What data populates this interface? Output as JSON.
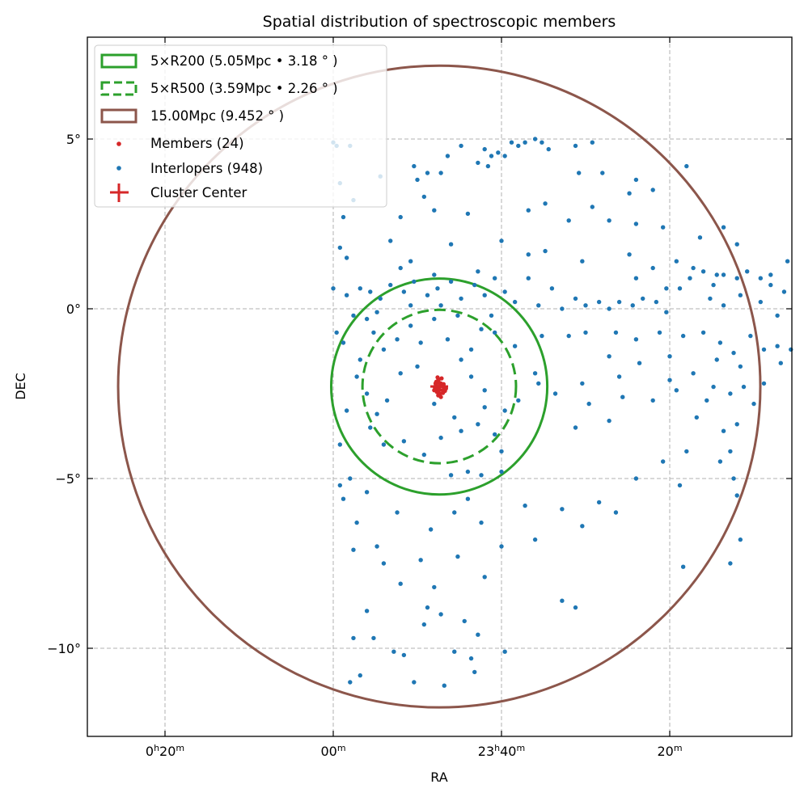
{
  "chart_data": {
    "type": "scatter",
    "title": "Spatial distribution of spectroscopic members",
    "xlabel": "RA",
    "ylabel": "DEC",
    "xlim_ra_deg": [
      7.31,
      346.37
    ],
    "x_inverted": true,
    "ylim": [
      -12.6,
      8.0
    ],
    "grid": true,
    "legend_placement": "top-left",
    "x_ticks": [
      {
        "ra_deg": 5,
        "parts": [
          {
            "t": "0"
          },
          {
            "t": "h",
            "sup": true
          },
          {
            "t": "20"
          },
          {
            "t": "m",
            "sup": true
          }
        ]
      },
      {
        "ra_deg": 0,
        "parts": [
          {
            "t": "00"
          },
          {
            "t": "m",
            "sup": true
          }
        ]
      },
      {
        "ra_deg": 355,
        "parts": [
          {
            "t": "23"
          },
          {
            "t": "h",
            "sup": true
          },
          {
            "t": "40"
          },
          {
            "t": "m",
            "sup": true
          }
        ]
      },
      {
        "ra_deg": 350,
        "parts": [
          {
            "t": "20"
          },
          {
            "t": "m",
            "sup": true
          }
        ]
      }
    ],
    "y_ticks": [
      {
        "value": 5,
        "label": "5°"
      },
      {
        "value": 0,
        "label": "0°"
      },
      {
        "value": -5,
        "label": "−5°"
      },
      {
        "value": -10,
        "label": "−10°"
      }
    ],
    "cluster_center": {
      "ra": 356.85,
      "dec": -2.29,
      "color": "#d62728"
    },
    "circles": [
      {
        "name": "r200",
        "radius_deg": 3.18,
        "style": "solid",
        "color": "#2ca02c",
        "label": "5×R200 (5.05Mpc • 3.18 ° )"
      },
      {
        "name": "r500",
        "radius_deg": 2.26,
        "style": "dashed",
        "color": "#2ca02c",
        "label": "5×R500 (3.59Mpc • 2.26 ° )"
      },
      {
        "name": "15mpc",
        "radius_deg": 9.452,
        "style": "solid",
        "color": "#8c564b",
        "label": "15.00Mpc (9.452 ° )"
      }
    ],
    "legend": {
      "members_label": "Members (24)",
      "interlopers_label": "Interlopers (948)",
      "center_label": "Cluster Center"
    },
    "members": {
      "color": "#d62728",
      "points": [
        [
          356.85,
          -2.29
        ],
        [
          356.8,
          -2.2
        ],
        [
          356.9,
          -2.35
        ],
        [
          356.75,
          -2.4
        ],
        [
          356.95,
          -2.25
        ],
        [
          356.7,
          -2.3
        ],
        [
          356.88,
          -2.1
        ],
        [
          356.78,
          -2.05
        ],
        [
          356.92,
          -2.45
        ],
        [
          356.82,
          -2.5
        ],
        [
          356.65,
          -2.35
        ],
        [
          356.98,
          -2.32
        ],
        [
          356.86,
          -2.18
        ],
        [
          356.72,
          -2.22
        ],
        [
          356.94,
          -2.15
        ],
        [
          356.84,
          -2.38
        ],
        [
          356.76,
          -2.28
        ],
        [
          357.0,
          -2.4
        ],
        [
          356.68,
          -2.42
        ],
        [
          356.9,
          -2.02
        ],
        [
          356.8,
          -2.6
        ],
        [
          356.96,
          -2.2
        ],
        [
          356.74,
          -2.48
        ],
        [
          356.88,
          -2.55
        ]
      ]
    },
    "interlopers": {
      "color": "#1f77b4",
      "points": [
        [
          356.2,
          4.8
        ],
        [
          355.5,
          4.7
        ],
        [
          355.3,
          4.5
        ],
        [
          355.1,
          4.6
        ],
        [
          354.9,
          4.5
        ],
        [
          354.7,
          4.9
        ],
        [
          354.5,
          4.8
        ],
        [
          354.3,
          4.9
        ],
        [
          354.0,
          5.0
        ],
        [
          353.8,
          4.9
        ],
        [
          353.6,
          4.7
        ],
        [
          352.8,
          4.8
        ],
        [
          352.3,
          4.9
        ],
        [
          356.6,
          4.5
        ],
        [
          357.6,
          4.2
        ],
        [
          357.5,
          3.8
        ],
        [
          357.2,
          4.0
        ],
        [
          356.8,
          4.0
        ],
        [
          355.7,
          4.3
        ],
        [
          355.4,
          4.2
        ],
        [
          352.7,
          4.0
        ],
        [
          352.0,
          4.0
        ],
        [
          351.0,
          3.8
        ],
        [
          349.5,
          4.2
        ],
        [
          350.5,
          3.5
        ],
        [
          351.2,
          3.4
        ],
        [
          359.4,
          3.2
        ],
        [
          358.0,
          2.7
        ],
        [
          357.3,
          3.3
        ],
        [
          357.0,
          2.9
        ],
        [
          356.0,
          2.8
        ],
        [
          354.2,
          2.9
        ],
        [
          353.7,
          3.1
        ],
        [
          353.0,
          2.6
        ],
        [
          352.3,
          3.0
        ],
        [
          351.8,
          2.6
        ],
        [
          351.0,
          2.5
        ],
        [
          350.2,
          2.4
        ],
        [
          349.1,
          2.1
        ],
        [
          348.4,
          2.4
        ],
        [
          348.0,
          1.9
        ],
        [
          359.7,
          2.7
        ],
        [
          358.3,
          2.0
        ],
        [
          357.7,
          1.4
        ],
        [
          356.5,
          1.9
        ],
        [
          355.0,
          2.0
        ],
        [
          354.2,
          1.6
        ],
        [
          353.7,
          1.7
        ],
        [
          352.6,
          1.4
        ],
        [
          351.2,
          1.6
        ],
        [
          350.5,
          1.2
        ],
        [
          349.8,
          1.4
        ],
        [
          349.3,
          1.2
        ],
        [
          348.6,
          1.0
        ],
        [
          347.0,
          1.0
        ],
        [
          346.5,
          1.4
        ],
        [
          359.8,
          1.8
        ],
        [
          359.6,
          1.5
        ],
        [
          360.0,
          0.6
        ],
        [
          359.6,
          0.4
        ],
        [
          359.2,
          0.6
        ],
        [
          358.9,
          0.5
        ],
        [
          358.6,
          0.3
        ],
        [
          358.3,
          0.7
        ],
        [
          357.9,
          0.5
        ],
        [
          357.6,
          0.8
        ],
        [
          357.2,
          0.4
        ],
        [
          356.9,
          0.6
        ],
        [
          356.5,
          0.8
        ],
        [
          356.2,
          0.3
        ],
        [
          355.8,
          0.7
        ],
        [
          355.5,
          0.4
        ],
        [
          355.2,
          0.9
        ],
        [
          354.9,
          0.5
        ],
        [
          354.6,
          0.2
        ],
        [
          354.2,
          0.9
        ],
        [
          353.9,
          0.1
        ],
        [
          353.5,
          0.6
        ],
        [
          353.2,
          0.0
        ],
        [
          352.8,
          0.3
        ],
        [
          352.5,
          0.1
        ],
        [
          352.1,
          0.2
        ],
        [
          351.8,
          0.0
        ],
        [
          351.5,
          0.2
        ],
        [
          351.1,
          0.1
        ],
        [
          350.8,
          0.3
        ],
        [
          350.4,
          0.2
        ],
        [
          350.1,
          -0.1
        ],
        [
          349.7,
          0.6
        ],
        [
          349.4,
          0.9
        ],
        [
          349.0,
          1.1
        ],
        [
          348.7,
          0.7
        ],
        [
          348.4,
          1.0
        ],
        [
          348.0,
          0.9
        ],
        [
          347.7,
          1.1
        ],
        [
          347.3,
          0.9
        ],
        [
          347.0,
          0.7
        ],
        [
          346.6,
          0.5
        ],
        [
          348.8,
          0.3
        ],
        [
          348.4,
          0.1
        ],
        [
          347.9,
          0.4
        ],
        [
          347.3,
          0.2
        ],
        [
          346.8,
          -0.2
        ],
        [
          351.0,
          0.9
        ],
        [
          350.1,
          0.6
        ],
        [
          355.7,
          1.1
        ],
        [
          357.0,
          1.0
        ],
        [
          358.0,
          1.2
        ],
        [
          352.5,
          -0.7
        ],
        [
          351.6,
          -0.7
        ],
        [
          351.0,
          -0.9
        ],
        [
          350.3,
          -0.7
        ],
        [
          349.6,
          -0.8
        ],
        [
          349.0,
          -0.7
        ],
        [
          348.5,
          -1.0
        ],
        [
          348.1,
          -1.3
        ],
        [
          347.6,
          -0.8
        ],
        [
          347.2,
          -1.2
        ],
        [
          346.8,
          -1.1
        ],
        [
          346.4,
          -1.2
        ],
        [
          346.7,
          -1.6
        ],
        [
          347.9,
          -1.7
        ],
        [
          348.6,
          -1.5
        ],
        [
          349.3,
          -1.9
        ],
        [
          350.0,
          -1.4
        ],
        [
          350.9,
          -1.6
        ],
        [
          351.8,
          -1.4
        ],
        [
          353.0,
          -0.8
        ],
        [
          353.8,
          -0.8
        ],
        [
          354.6,
          -1.1
        ],
        [
          355.2,
          -0.7
        ],
        [
          354.0,
          -1.9
        ],
        [
          352.6,
          -2.2
        ],
        [
          351.5,
          -2.0
        ],
        [
          350.0,
          -2.1
        ],
        [
          348.7,
          -2.3
        ],
        [
          348.2,
          -2.5
        ],
        [
          347.8,
          -2.3
        ],
        [
          347.5,
          -2.8
        ],
        [
          347.2,
          -2.2
        ],
        [
          348.9,
          -2.7
        ],
        [
          349.8,
          -2.4
        ],
        [
          350.5,
          -2.7
        ],
        [
          351.4,
          -2.6
        ],
        [
          352.4,
          -2.8
        ],
        [
          353.4,
          -2.5
        ],
        [
          353.9,
          -2.2
        ],
        [
          354.5,
          -2.7
        ],
        [
          348.0,
          -3.4
        ],
        [
          348.4,
          -3.6
        ],
        [
          349.2,
          -3.2
        ],
        [
          352.8,
          -3.5
        ],
        [
          351.8,
          -3.3
        ],
        [
          354.9,
          -3.0
        ],
        [
          355.5,
          -2.4
        ],
        [
          348.2,
          -4.2
        ],
        [
          348.5,
          -4.5
        ],
        [
          348.1,
          -5.0
        ],
        [
          348.0,
          -5.5
        ],
        [
          347.9,
          -6.8
        ],
        [
          349.7,
          -5.2
        ],
        [
          351.0,
          -5.0
        ],
        [
          349.5,
          -4.2
        ],
        [
          350.2,
          -4.5
        ],
        [
          352.1,
          -5.7
        ],
        [
          351.6,
          -6.0
        ],
        [
          352.6,
          -6.4
        ],
        [
          353.2,
          -5.9
        ],
        [
          354.3,
          -5.8
        ],
        [
          354.0,
          -6.8
        ],
        [
          355.0,
          -7.0
        ],
        [
          355.5,
          -7.9
        ],
        [
          349.6,
          -7.6
        ],
        [
          348.2,
          -7.5
        ],
        [
          353.2,
          -8.6
        ],
        [
          352.8,
          -8.8
        ],
        [
          356.1,
          -9.2
        ],
        [
          355.7,
          -9.6
        ],
        [
          356.4,
          -10.1
        ],
        [
          355.9,
          -10.3
        ],
        [
          354.9,
          -10.1
        ],
        [
          356.8,
          -9.0
        ],
        [
          357.2,
          -8.8
        ],
        [
          358.2,
          -10.1
        ],
        [
          358.8,
          -9.7
        ],
        [
          359.0,
          -8.9
        ],
        [
          359.4,
          -9.7
        ],
        [
          359.5,
          -11.0
        ],
        [
          359.2,
          -10.8
        ],
        [
          357.9,
          -10.2
        ],
        [
          357.6,
          -11.0
        ],
        [
          356.7,
          -11.1
        ],
        [
          355.8,
          -10.7
        ],
        [
          357.3,
          -9.3
        ],
        [
          358.5,
          -7.5
        ],
        [
          357.4,
          -7.4
        ],
        [
          356.3,
          -7.3
        ],
        [
          355.6,
          -6.3
        ],
        [
          356.4,
          -6.0
        ],
        [
          359.4,
          -7.1
        ],
        [
          358.7,
          -7.0
        ],
        [
          358.0,
          -8.1
        ],
        [
          357.0,
          -8.2
        ],
        [
          357.1,
          -6.5
        ],
        [
          356.0,
          -5.6
        ],
        [
          358.1,
          -6.0
        ],
        [
          359.3,
          -6.3
        ],
        [
          359.8,
          -5.2
        ],
        [
          359.7,
          -5.6
        ],
        [
          359.0,
          -5.4
        ],
        [
          356.5,
          -4.9
        ],
        [
          356.0,
          -4.8
        ],
        [
          355.0,
          -4.8
        ],
        [
          355.6,
          -4.9
        ],
        [
          359.9,
          -0.7
        ],
        [
          359.7,
          -1.0
        ],
        [
          359.4,
          -0.2
        ],
        [
          359.0,
          -0.3
        ],
        [
          358.8,
          -0.7
        ],
        [
          358.5,
          -1.2
        ],
        [
          358.1,
          -0.9
        ],
        [
          357.7,
          -0.5
        ],
        [
          357.4,
          -1.0
        ],
        [
          357.0,
          -0.3
        ],
        [
          356.6,
          -0.9
        ],
        [
          356.3,
          -0.2
        ],
        [
          355.9,
          -1.2
        ],
        [
          355.6,
          -0.6
        ],
        [
          355.3,
          -0.2
        ],
        [
          359.3,
          -2.0
        ],
        [
          359.0,
          -2.5
        ],
        [
          358.7,
          -3.1
        ],
        [
          358.4,
          -2.7
        ],
        [
          358.9,
          -3.5
        ],
        [
          358.5,
          -4.0
        ],
        [
          357.9,
          -3.9
        ],
        [
          357.3,
          -4.3
        ],
        [
          356.8,
          -3.8
        ],
        [
          356.2,
          -3.6
        ],
        [
          355.7,
          -3.4
        ],
        [
          355.5,
          -2.9
        ],
        [
          355.9,
          -2.0
        ],
        [
          356.2,
          -1.5
        ],
        [
          357.5,
          -1.7
        ],
        [
          357.0,
          -2.8
        ],
        [
          358.0,
          -1.9
        ],
        [
          356.4,
          -3.2
        ],
        [
          355.2,
          -3.7
        ],
        [
          355.0,
          -4.2
        ],
        [
          359.6,
          -3.0
        ],
        [
          359.8,
          -4.0
        ],
        [
          359.5,
          -5.0
        ],
        [
          359.2,
          -1.5
        ],
        [
          358.7,
          -0.1
        ],
        [
          357.7,
          0.1
        ],
        [
          356.8,
          0.1
        ],
        [
          360.0,
          4.9
        ],
        [
          359.9,
          4.8
        ],
        [
          359.5,
          4.8
        ],
        [
          359.8,
          3.7
        ],
        [
          358.6,
          3.9
        ]
      ]
    }
  }
}
